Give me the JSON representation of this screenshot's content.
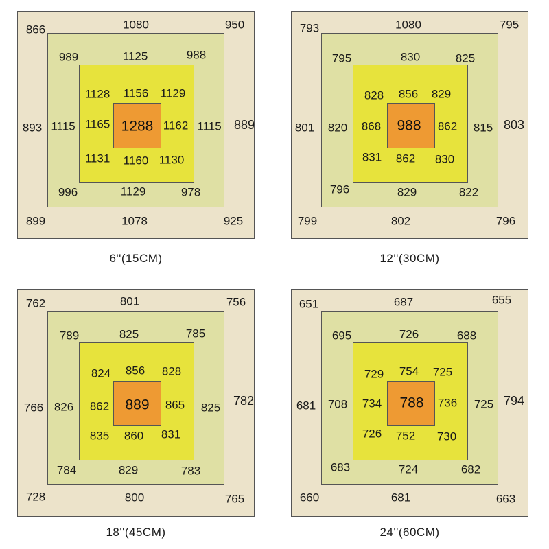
{
  "panels": [
    {
      "caption": "6''(15CM)",
      "outer": {
        "tl": "866",
        "top": "1080",
        "tr": "950",
        "left": "893",
        "right": "889",
        "bl": "899",
        "bottom": "1078",
        "br": "925"
      },
      "middle": {
        "tl": "989",
        "top": "1125",
        "tr": "988",
        "left": "1115",
        "right": "1115",
        "bl": "996",
        "bottom": "1129",
        "br": "978"
      },
      "inner": {
        "tl": "1128",
        "top": "1156",
        "tr": "1129",
        "left": "1165",
        "right": "1162",
        "bl": "1131",
        "bottom": "1160",
        "br": "1130"
      },
      "center": "1288"
    },
    {
      "caption": "12''(30CM)",
      "outer": {
        "tl": "793",
        "top": "1080",
        "tr": "795",
        "left": "801",
        "right": "803",
        "bl": "799",
        "bottom": "802",
        "br": "796"
      },
      "middle": {
        "tl": "795",
        "top": "830",
        "tr": "825",
        "left": "820",
        "right": "815",
        "bl": "796",
        "bottom": "829",
        "br": "822"
      },
      "inner": {
        "tl": "828",
        "top": "856",
        "tr": "829",
        "left": "868",
        "right": "862",
        "bl": "831",
        "bottom": "862",
        "br": "830"
      },
      "center": "988"
    },
    {
      "caption": "18''(45CM)",
      "outer": {
        "tl": "762",
        "top": "801",
        "tr": "756",
        "left": "766",
        "right": "782",
        "bl": "728",
        "bottom": "800",
        "br": "765"
      },
      "middle": {
        "tl": "789",
        "top": "825",
        "tr": "785",
        "left": "826",
        "right": "825",
        "bl": "784",
        "bottom": "829",
        "br": "783"
      },
      "inner": {
        "tl": "824",
        "top": "856",
        "tr": "828",
        "left": "862",
        "right": "865",
        "bl": "835",
        "bottom": "860",
        "br": "831"
      },
      "center": "889"
    },
    {
      "caption": "24''(60CM)",
      "outer": {
        "tl": "651",
        "top": "687",
        "tr": "655",
        "left": "681",
        "right": "794",
        "bl": "660",
        "bottom": "681",
        "br": "663"
      },
      "middle": {
        "tl": "695",
        "top": "726",
        "tr": "688",
        "left": "708",
        "right": "725",
        "bl": "683",
        "bottom": "724",
        "br": "682"
      },
      "inner": {
        "tl": "729",
        "top": "754",
        "tr": "725",
        "left": "734",
        "right": "736",
        "bl": "726",
        "bottom": "752",
        "br": "730"
      },
      "center": "788"
    }
  ]
}
